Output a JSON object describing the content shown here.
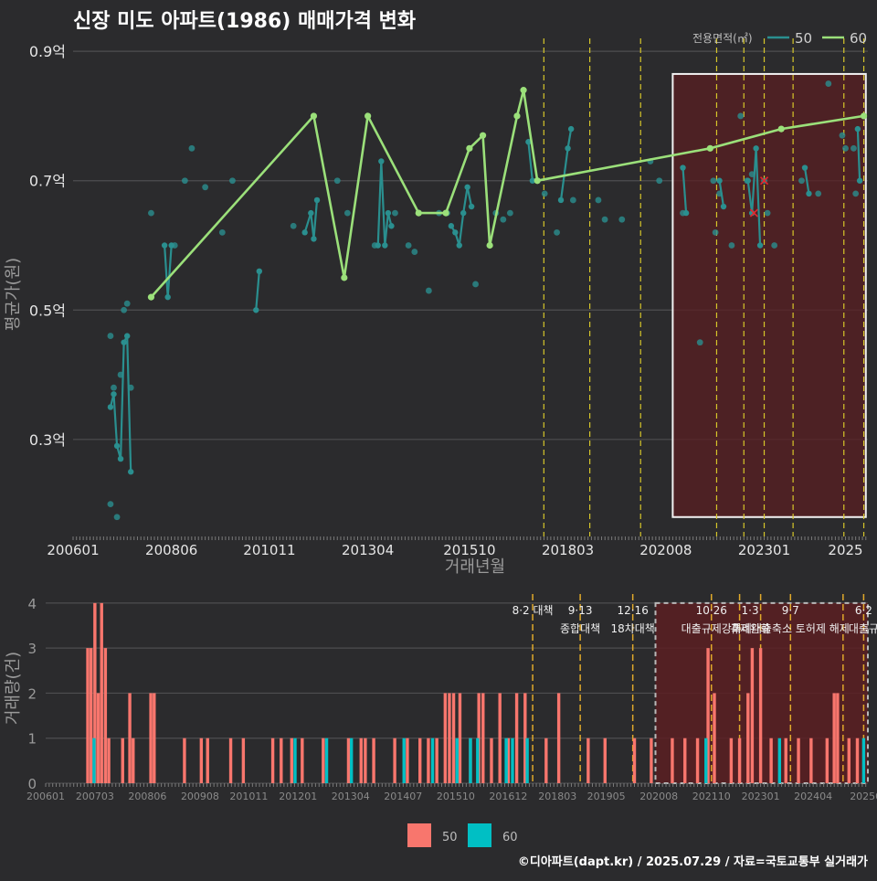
{
  "title": "신장 미도 아파트(1986) 매매가격 변화",
  "footer": "©디아파트(dapt.kr) / 2025.07.29 / 자료=국토교통부 실거래가",
  "colors": {
    "background": "#2b2b2d",
    "series50_line": "#2a8f8f",
    "series60_line": "#9be07a",
    "bar50": "#f8766d",
    "bar60": "#00bfc4",
    "highlight_fill": "#5a1f22",
    "policy_line_top": "#d6c62a",
    "policy_line_bottom": "#e0a92a"
  },
  "chart_data": [
    {
      "type": "line",
      "title": "신장 미도 아파트(1986) 매매가격 변화",
      "xlabel": "거래년월",
      "ylabel": "평균가(원)",
      "xlim": [
        2006.0,
        2025.55
      ],
      "ylim": [
        0.15,
        0.92
      ],
      "y_ticks": [
        0.3,
        0.5,
        0.7,
        0.9
      ],
      "y_tick_labels": [
        "0.3억",
        "0.5억",
        "0.7억",
        "0.9억"
      ],
      "x_ticks": [
        2006.0,
        2008.42,
        2010.83,
        2013.25,
        2015.75,
        2018.17,
        2020.58,
        2023.0,
        2025.0
      ],
      "x_tick_labels": [
        "200601",
        "200806",
        "201011",
        "201304",
        "201510",
        "201803",
        "202008",
        "202301",
        "2025"
      ],
      "legend_title": "전용면적(㎡)",
      "legend_position": "top-right",
      "grid": true,
      "series": [
        {
          "name": "50",
          "values": [
            [
              2006.92,
              0.35
            ],
            [
              2007.0,
              0.37
            ],
            [
              2007.08,
              0.29
            ],
            [
              2007.17,
              0.27
            ],
            [
              2007.25,
              0.45
            ],
            [
              2007.33,
              0.46
            ],
            [
              2007.42,
              0.25
            ],
            [
              2008.25,
              0.6
            ],
            [
              2008.33,
              0.52
            ],
            [
              2008.42,
              0.6
            ],
            [
              2010.5,
              0.5
            ],
            [
              2010.58,
              0.56
            ],
            [
              2011.7,
              0.62
            ],
            [
              2011.85,
              0.65
            ],
            [
              2011.92,
              0.61
            ],
            [
              2012.0,
              0.67
            ],
            [
              2013.5,
              0.6
            ],
            [
              2013.58,
              0.73
            ],
            [
              2013.67,
              0.6
            ],
            [
              2013.75,
              0.65
            ],
            [
              2013.83,
              0.63
            ],
            [
              2015.3,
              0.63
            ],
            [
              2015.4,
              0.62
            ],
            [
              2015.5,
              0.6
            ],
            [
              2015.6,
              0.65
            ],
            [
              2015.7,
              0.69
            ],
            [
              2015.8,
              0.66
            ],
            [
              2017.2,
              0.76
            ],
            [
              2017.3,
              0.7
            ],
            [
              2018.0,
              0.67
            ],
            [
              2018.17,
              0.75
            ],
            [
              2018.25,
              0.78
            ],
            [
              2021.0,
              0.72
            ],
            [
              2021.08,
              0.65
            ],
            [
              2021.9,
              0.7
            ],
            [
              2022.0,
              0.66
            ],
            [
              2022.6,
              0.7
            ],
            [
              2022.7,
              0.65
            ],
            [
              2022.8,
              0.75
            ],
            [
              2022.9,
              0.6
            ],
            [
              2024.0,
              0.72
            ],
            [
              2024.1,
              0.68
            ],
            [
              2025.3,
              0.78
            ],
            [
              2025.35,
              0.7
            ]
          ]
        },
        {
          "name": "60",
          "values": [
            [
              2007.92,
              0.52
            ],
            [
              2011.92,
              0.8
            ],
            [
              2012.67,
              0.55
            ],
            [
              2013.25,
              0.8
            ],
            [
              2014.5,
              0.65
            ],
            [
              2015.17,
              0.65
            ],
            [
              2015.75,
              0.75
            ],
            [
              2016.08,
              0.77
            ],
            [
              2016.25,
              0.6
            ],
            [
              2016.92,
              0.8
            ],
            [
              2017.08,
              0.84
            ],
            [
              2017.42,
              0.7
            ],
            [
              2021.67,
              0.75
            ],
            [
              2023.42,
              0.78
            ],
            [
              2025.45,
              0.8
            ]
          ]
        }
      ],
      "scatter_points": [
        [
          2006.92,
          0.2
        ],
        [
          2007.08,
          0.18
        ],
        [
          2006.92,
          0.46
        ],
        [
          2007.0,
          0.38
        ],
        [
          2007.17,
          0.4
        ],
        [
          2007.25,
          0.5
        ],
        [
          2007.33,
          0.51
        ],
        [
          2007.42,
          0.38
        ],
        [
          2007.92,
          0.65
        ],
        [
          2008.5,
          0.6
        ],
        [
          2008.75,
          0.7
        ],
        [
          2008.92,
          0.75
        ],
        [
          2009.25,
          0.69
        ],
        [
          2009.67,
          0.62
        ],
        [
          2009.92,
          0.7
        ],
        [
          2011.42,
          0.63
        ],
        [
          2012.5,
          0.7
        ],
        [
          2012.75,
          0.65
        ],
        [
          2013.42,
          0.6
        ],
        [
          2013.92,
          0.65
        ],
        [
          2014.25,
          0.6
        ],
        [
          2014.4,
          0.59
        ],
        [
          2014.75,
          0.53
        ],
        [
          2015.0,
          0.65
        ],
        [
          2015.2,
          0.65
        ],
        [
          2015.9,
          0.54
        ],
        [
          2016.4,
          0.65
        ],
        [
          2016.58,
          0.64
        ],
        [
          2016.75,
          0.65
        ],
        [
          2017.6,
          0.68
        ],
        [
          2017.9,
          0.62
        ],
        [
          2018.3,
          0.67
        ],
        [
          2018.92,
          0.67
        ],
        [
          2019.08,
          0.64
        ],
        [
          2019.5,
          0.64
        ],
        [
          2020.2,
          0.73
        ],
        [
          2020.42,
          0.7
        ],
        [
          2021.0,
          0.65
        ],
        [
          2021.42,
          0.45
        ],
        [
          2021.75,
          0.7
        ],
        [
          2021.8,
          0.62
        ],
        [
          2021.9,
          0.68
        ],
        [
          2022.2,
          0.6
        ],
        [
          2022.42,
          0.8
        ],
        [
          2022.58,
          0.7
        ],
        [
          2022.7,
          0.71
        ],
        [
          2023.0,
          0.7
        ],
        [
          2023.08,
          0.65
        ],
        [
          2023.25,
          0.6
        ],
        [
          2023.92,
          0.7
        ],
        [
          2024.33,
          0.68
        ],
        [
          2024.58,
          0.85
        ],
        [
          2024.92,
          0.77
        ],
        [
          2025.0,
          0.75
        ],
        [
          2025.2,
          0.75
        ],
        [
          2025.25,
          0.68
        ]
      ],
      "cross_markers": [
        [
          2022.75,
          0.65
        ],
        [
          2023.0,
          0.7
        ]
      ],
      "policy_lines_x": [
        2017.58,
        2018.71,
        2019.96,
        2021.83,
        2022.5,
        2023.0,
        2023.71,
        2024.96,
        2025.45
      ]
    },
    {
      "type": "bar",
      "xlabel": "",
      "ylabel": "거래량(건)",
      "xlim": [
        2006.0,
        2025.55
      ],
      "ylim": [
        0,
        4.2
      ],
      "y_ticks": [
        0,
        1,
        2,
        3,
        4
      ],
      "x_ticks": [
        2006.0,
        2007.17,
        2008.42,
        2009.67,
        2010.83,
        2012.0,
        2013.25,
        2014.5,
        2015.75,
        2017.0,
        2018.17,
        2019.33,
        2020.58,
        2021.83,
        2023.0,
        2024.25,
        2025.5
      ],
      "x_tick_labels": [
        "200601",
        "200703",
        "200806",
        "200908",
        "201011",
        "201201",
        "201304",
        "201407",
        "201510",
        "201612",
        "201803",
        "201905",
        "202008",
        "202110",
        "202301",
        "202404",
        "20250"
      ],
      "legend_entries": [
        "50",
        "60"
      ],
      "legend_position": "bottom",
      "series": [
        {
          "name": "50",
          "values": [
            [
              2007.0,
              3
            ],
            [
              2007.08,
              3
            ],
            [
              2007.17,
              4
            ],
            [
              2007.25,
              2
            ],
            [
              2007.33,
              4
            ],
            [
              2007.42,
              3
            ],
            [
              2007.5,
              1
            ],
            [
              2007.83,
              1
            ],
            [
              2008.0,
              2
            ],
            [
              2008.08,
              1
            ],
            [
              2008.5,
              2
            ],
            [
              2008.58,
              2
            ],
            [
              2009.3,
              1
            ],
            [
              2009.7,
              1
            ],
            [
              2009.85,
              1
            ],
            [
              2010.4,
              1
            ],
            [
              2010.7,
              1
            ],
            [
              2011.4,
              1
            ],
            [
              2011.6,
              1
            ],
            [
              2011.85,
              1
            ],
            [
              2012.1,
              1
            ],
            [
              2012.6,
              1
            ],
            [
              2013.2,
              1
            ],
            [
              2013.5,
              1
            ],
            [
              2013.6,
              1
            ],
            [
              2013.8,
              1
            ],
            [
              2014.3,
              1
            ],
            [
              2014.6,
              1
            ],
            [
              2014.9,
              1
            ],
            [
              2015.1,
              1
            ],
            [
              2015.3,
              1
            ],
            [
              2015.5,
              2
            ],
            [
              2015.6,
              2
            ],
            [
              2015.7,
              2
            ],
            [
              2015.85,
              2
            ],
            [
              2016.1,
              1
            ],
            [
              2016.3,
              2
            ],
            [
              2016.4,
              2
            ],
            [
              2016.6,
              1
            ],
            [
              2016.8,
              2
            ],
            [
              2017.0,
              1
            ],
            [
              2017.2,
              2
            ],
            [
              2017.4,
              2
            ],
            [
              2017.9,
              1
            ],
            [
              2018.2,
              2
            ],
            [
              2018.9,
              1
            ],
            [
              2019.3,
              1
            ],
            [
              2020.0,
              1
            ],
            [
              2020.4,
              1
            ],
            [
              2020.9,
              1
            ],
            [
              2021.2,
              1
            ],
            [
              2021.5,
              1
            ],
            [
              2021.75,
              3
            ],
            [
              2021.9,
              2
            ],
            [
              2022.3,
              1
            ],
            [
              2022.5,
              1
            ],
            [
              2022.7,
              2
            ],
            [
              2022.8,
              3
            ],
            [
              2023.0,
              3
            ],
            [
              2023.25,
              1
            ],
            [
              2023.6,
              1
            ],
            [
              2023.9,
              1
            ],
            [
              2024.2,
              1
            ],
            [
              2024.58,
              1
            ],
            [
              2024.75,
              2
            ],
            [
              2024.83,
              2
            ],
            [
              2025.1,
              1
            ],
            [
              2025.3,
              1
            ]
          ]
        },
        {
          "name": "60",
          "values": [
            [
              2007.15,
              1
            ],
            [
              2011.93,
              1
            ],
            [
              2012.68,
              1
            ],
            [
              2013.27,
              1
            ],
            [
              2014.52,
              1
            ],
            [
              2015.2,
              1
            ],
            [
              2015.78,
              1
            ],
            [
              2016.1,
              1
            ],
            [
              2016.27,
              1
            ],
            [
              2016.95,
              1
            ],
            [
              2017.1,
              1
            ],
            [
              2017.45,
              1
            ],
            [
              2021.7,
              1
            ],
            [
              2023.45,
              1
            ],
            [
              2025.45,
              1
            ]
          ]
        }
      ],
      "policy_lines_x": [
        2017.58,
        2018.71,
        2019.96,
        2021.83,
        2022.5,
        2023.0,
        2023.71,
        2024.96,
        2025.45
      ],
      "annotations": [
        {
          "x": 2017.58,
          "line1": "8·2 대책",
          "line2": ""
        },
        {
          "x": 2018.71,
          "line1": "9·13",
          "line2": "종합대책"
        },
        {
          "x": 2019.96,
          "line1": "12·16",
          "line2": "18차대책"
        },
        {
          "x": 2021.83,
          "line1": "10·26",
          "line2": "대출규제강화"
        },
        {
          "x": 2022.75,
          "line1": "1·3",
          "line2": "규제완화"
        },
        {
          "x": 2023.71,
          "line1": "9·7",
          "line2": "특례대출축소 토허제 해제"
        },
        {
          "x": 2025.45,
          "line1": "6·2",
          "line2": "대출규"
        }
      ]
    }
  ],
  "legend": {
    "top_title": "전용면적(㎡)",
    "top_items": [
      "50",
      "60"
    ],
    "bottom_items": [
      "50",
      "60"
    ]
  }
}
